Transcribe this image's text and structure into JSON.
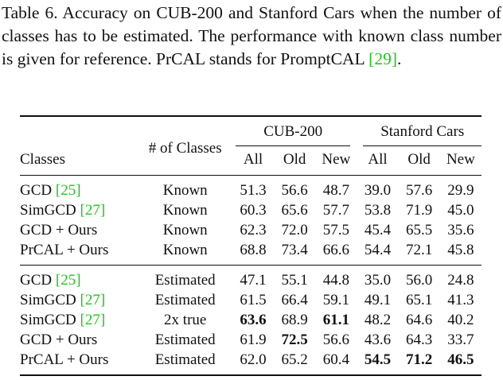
{
  "caption": {
    "text": "Table 6.  Accuracy on CUB-200 and Stanford Cars when the number of classes has to be estimated.  The performance with known class number is given for reference.  PrCAL stands for PromptCAL ",
    "cite": "[29]",
    "end": "."
  },
  "table": {
    "header": {
      "col_classes": "Classes",
      "col_num": "# of Classes",
      "group1": "CUB-200",
      "group2": "Stanford Cars",
      "sub": [
        "All",
        "Old",
        "New",
        "All",
        "Old",
        "New"
      ]
    },
    "section1": [
      {
        "name": "GCD ",
        "cite": "[25]",
        "classes": "Known",
        "v": [
          "51.3",
          "56.6",
          "48.7",
          "39.0",
          "57.6",
          "29.9"
        ]
      },
      {
        "name": "SimGCD ",
        "cite": "[27]",
        "classes": "Known",
        "v": [
          "60.3",
          "65.6",
          "57.7",
          "53.8",
          "71.9",
          "45.0"
        ]
      },
      {
        "name": "GCD + Ours",
        "cite": "",
        "classes": "Known",
        "v": [
          "62.3",
          "72.0",
          "57.5",
          "45.4",
          "65.5",
          "35.6"
        ]
      },
      {
        "name": "PrCAL + Ours",
        "cite": "",
        "classes": "Known",
        "v": [
          "68.8",
          "73.4",
          "66.6",
          "54.4",
          "72.1",
          "45.8"
        ]
      }
    ],
    "section2": [
      {
        "name": "GCD ",
        "cite": "[25]",
        "classes": "Estimated",
        "v": [
          "47.1",
          "55.1",
          "44.8",
          "35.0",
          "56.0",
          "24.8"
        ]
      },
      {
        "name": "SimGCD ",
        "cite": "[27]",
        "classes": "Estimated",
        "v": [
          "61.5",
          "66.4",
          "59.1",
          "49.1",
          "65.1",
          "41.3"
        ]
      },
      {
        "name": "SimGCD ",
        "cite": "[27]",
        "classes": "2x true",
        "v": [
          "63.6",
          "68.9",
          "61.1",
          "48.2",
          "64.6",
          "40.2"
        ]
      },
      {
        "name": "GCD + Ours",
        "cite": "",
        "classes": "Estimated",
        "v": [
          "61.9",
          "72.5",
          "56.6",
          "43.6",
          "64.3",
          "33.7"
        ]
      },
      {
        "name": "PrCAL + Ours",
        "cite": "",
        "classes": "Estimated",
        "v": [
          "62.0",
          "65.2",
          "60.4",
          "54.5",
          "71.2",
          "46.5"
        ]
      }
    ]
  }
}
